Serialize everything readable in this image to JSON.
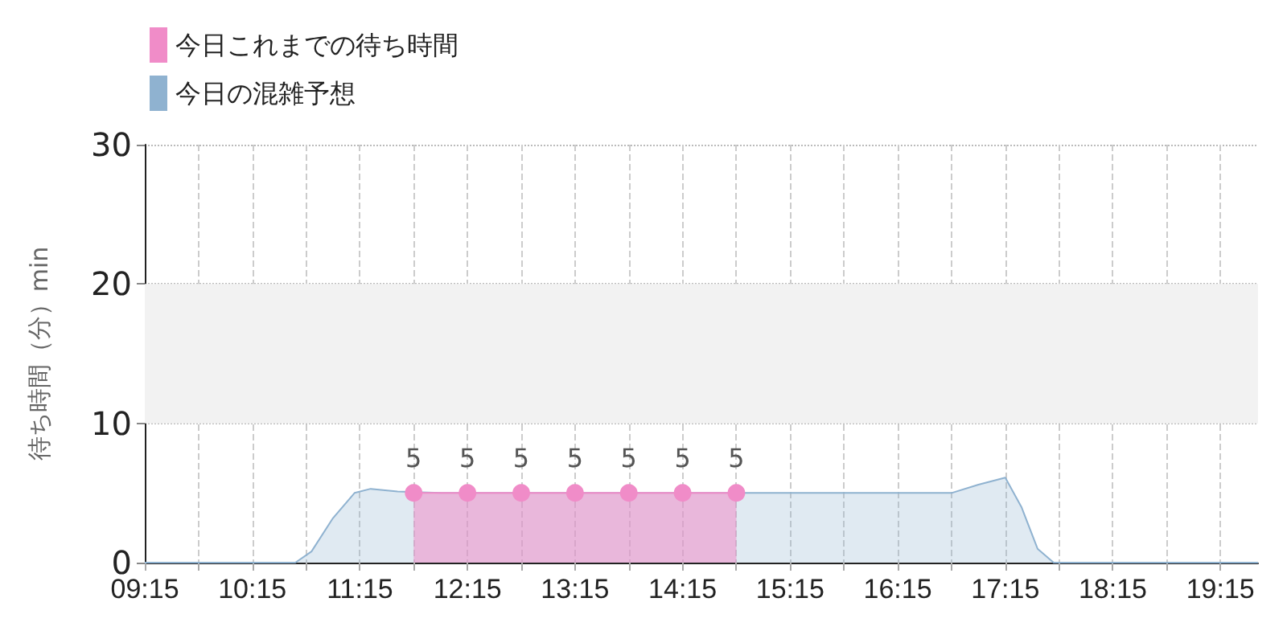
{
  "chart_data": {
    "type": "area",
    "ylabel": "待ち時間（分）min",
    "xlim": [
      9.25,
      19.6
    ],
    "xticks": [
      {
        "value": 9.25,
        "label": "09:15"
      },
      {
        "value": 9.75,
        "label": null
      },
      {
        "value": 10.25,
        "label": "10:15"
      },
      {
        "value": 10.75,
        "label": null
      },
      {
        "value": 11.25,
        "label": "11:15"
      },
      {
        "value": 11.75,
        "label": null
      },
      {
        "value": 12.25,
        "label": "12:15"
      },
      {
        "value": 12.75,
        "label": null
      },
      {
        "value": 13.25,
        "label": "13:15"
      },
      {
        "value": 13.75,
        "label": null
      },
      {
        "value": 14.25,
        "label": "14:15"
      },
      {
        "value": 14.75,
        "label": null
      },
      {
        "value": 15.25,
        "label": "15:15"
      },
      {
        "value": 15.75,
        "label": null
      },
      {
        "value": 16.25,
        "label": "16:15"
      },
      {
        "value": 16.75,
        "label": null
      },
      {
        "value": 17.25,
        "label": "17:15"
      },
      {
        "value": 17.75,
        "label": null
      },
      {
        "value": 18.25,
        "label": "18:15"
      },
      {
        "value": 18.75,
        "label": null
      },
      {
        "value": 19.25,
        "label": "19:15"
      }
    ],
    "ylim": [
      0,
      30
    ],
    "yticks": [
      0,
      10,
      20,
      30
    ],
    "grid": true,
    "legend": "top left",
    "bands": [
      {
        "axis": "y",
        "from": 10,
        "to": 20,
        "color": "#f2f2f2"
      }
    ],
    "series": [
      {
        "name": "今日これまでの待ち時間",
        "color": "#f08cc8",
        "marker": "circle",
        "x": [
          11.75,
          12.25,
          12.75,
          13.25,
          13.75,
          14.25,
          14.75
        ],
        "values": [
          5,
          5,
          5,
          5,
          5,
          5,
          5
        ],
        "value_labels": [
          "5",
          "5",
          "5",
          "5",
          "5",
          "5",
          "5"
        ]
      },
      {
        "name": "今日の混雑予想",
        "color": "#8fb2d0",
        "marker": "none",
        "x": [
          9.25,
          10.5,
          10.65,
          10.8,
          11.0,
          11.2,
          11.35,
          11.6,
          12.0,
          16.75,
          17.0,
          17.25,
          17.4,
          17.55,
          17.7,
          18.0,
          19.6
        ],
        "values": [
          0,
          0,
          0,
          0.8,
          3.2,
          5.0,
          5.3,
          5.1,
          5.0,
          5.0,
          5.6,
          6.1,
          4.0,
          1.0,
          0,
          0,
          0
        ]
      }
    ]
  }
}
